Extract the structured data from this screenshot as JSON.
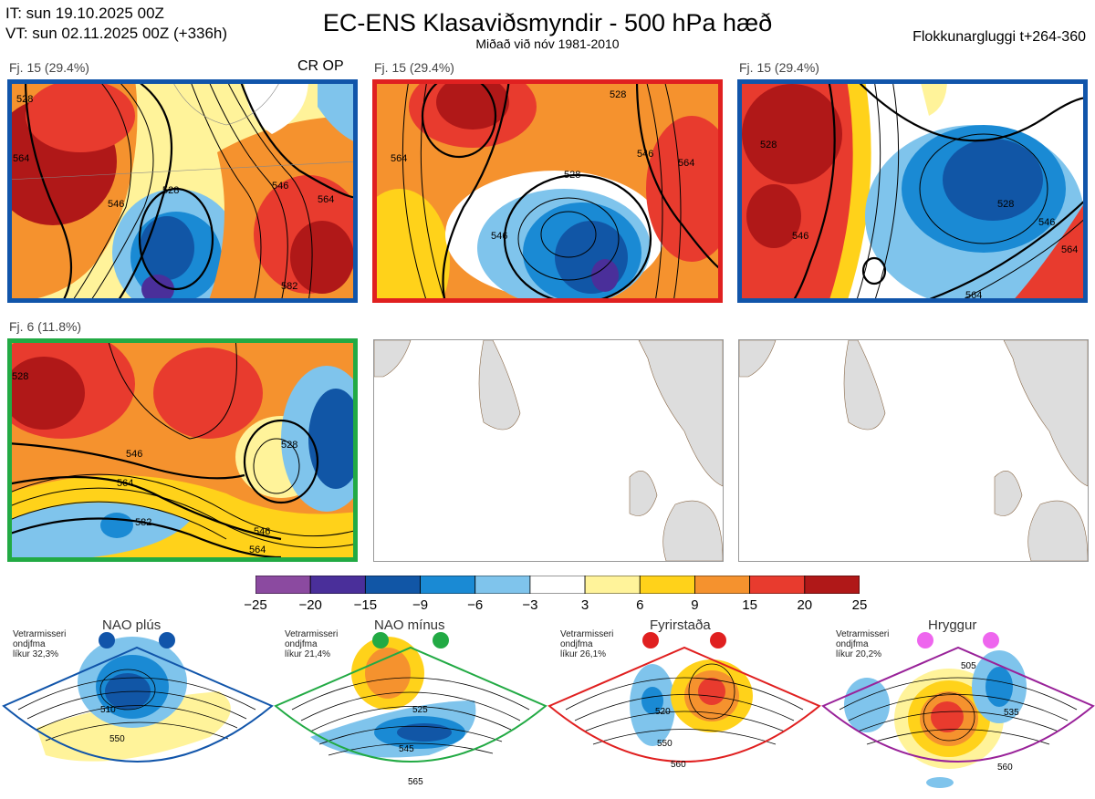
{
  "header": {
    "it": "IT: sun 19.10.2025 00Z",
    "vt": "VT: sun 02.11.2025 00Z  (+336h)",
    "title": "EC-ENS Klasaviðsmyndir - 500 hPa hæð",
    "subtitle": "Miðað við nóv 1981-2010",
    "window": "Flokkunargluggi t+264-360"
  },
  "panels": [
    {
      "label": "Fj. 15 (29.4%)",
      "tag": "CR OP",
      "border": "#1155aa",
      "contours": [
        "528",
        "546",
        "564",
        "582",
        "564",
        "546",
        "528"
      ]
    },
    {
      "label": "Fj. 15 (29.4%)",
      "tag": "",
      "border": "#e02020",
      "contours": [
        "528",
        "546",
        "564",
        "546",
        "564",
        "528"
      ]
    },
    {
      "label": "Fj. 15 (29.4%)",
      "tag": "",
      "border": "#1155aa",
      "contours": [
        "528",
        "546",
        "564",
        "528",
        "546",
        "564"
      ]
    },
    {
      "label": "Fj. 6 (11.8%)",
      "tag": "",
      "border": "#22aa44",
      "contours": [
        "528",
        "546",
        "564",
        "582",
        "546",
        "564"
      ]
    }
  ],
  "colorbar": {
    "ticks": [
      "−25",
      "−20",
      "−15",
      "−9",
      "−6",
      "−3",
      "3",
      "6",
      "9",
      "15",
      "20",
      "25"
    ],
    "colors": [
      "#8b4aa0",
      "#4a2f9a",
      "#1156a6",
      "#1a8ad4",
      "#7fc4ec",
      "#ffffff",
      "#fff39a",
      "#ffd21a",
      "#f5922e",
      "#e83b2e",
      "#b01818"
    ]
  },
  "regimes": [
    {
      "name": "NAO plús",
      "color": "#1155aa",
      "note": [
        "Vetrarmisseri",
        "ondjfma",
        "líkur 32,3%"
      ],
      "labels": [
        "510",
        "550"
      ]
    },
    {
      "name": "NAO mínus",
      "color": "#22aa44",
      "note": [
        "Vetrarmisseri",
        "ondjfma",
        "líkur 21,4%"
      ],
      "labels": [
        "525",
        "545",
        "565"
      ]
    },
    {
      "name": "Fyrirstaða",
      "color": "#e02020",
      "note": [
        "Vetrarmisseri",
        "ondjfma",
        "líkur 26,1%"
      ],
      "labels": [
        "520",
        "550",
        "560"
      ]
    },
    {
      "name": "Hryggur",
      "color": "#992299",
      "note": [
        "Vetrarmisseri",
        "ondjfma",
        "líkur 20,2%"
      ],
      "labels": [
        "505",
        "535",
        "560"
      ]
    }
  ]
}
